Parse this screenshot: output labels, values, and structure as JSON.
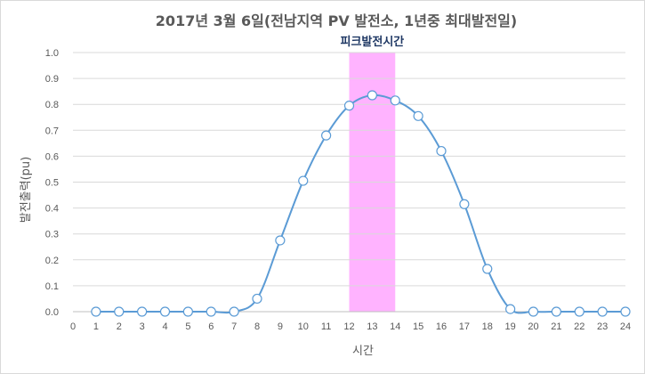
{
  "chart_data": {
    "type": "scatter",
    "title": "2017년 3월 6일(전남지역 PV 발전소, 1년중 최대발전일)",
    "xlabel": "시간",
    "ylabel": "발전출력(pu)",
    "xlim": [
      0,
      24
    ],
    "ylim": [
      0,
      1.0
    ],
    "x_ticks": [
      "0",
      "1",
      "2",
      "3",
      "4",
      "5",
      "6",
      "7",
      "8",
      "9",
      "10",
      "11",
      "12",
      "13",
      "14",
      "15",
      "16",
      "17",
      "18",
      "19",
      "20",
      "21",
      "22",
      "23",
      "24"
    ],
    "y_ticks": [
      "0.0",
      "0.1",
      "0.2",
      "0.3",
      "0.4",
      "0.5",
      "0.6",
      "0.7",
      "0.8",
      "0.9",
      "1.0"
    ],
    "grid": "horizontal",
    "line_color": "#5b9bd5",
    "marker_fill": "#ffffff",
    "highlight": {
      "label": "피크발전시간",
      "x_start": 12,
      "x_end": 14,
      "color": "#ff99ff"
    },
    "series": [
      {
        "x": [
          1,
          2,
          3,
          4,
          5,
          6,
          7,
          8,
          9,
          10,
          11,
          12,
          13,
          14,
          15,
          16,
          17,
          18,
          19,
          20,
          21,
          22,
          23,
          24
        ],
        "values": [
          0,
          0,
          0,
          0,
          0,
          0,
          0,
          0.05,
          0.275,
          0.505,
          0.68,
          0.795,
          0.835,
          0.815,
          0.755,
          0.62,
          0.415,
          0.165,
          0.01,
          0,
          0,
          0,
          0,
          0
        ]
      }
    ]
  }
}
